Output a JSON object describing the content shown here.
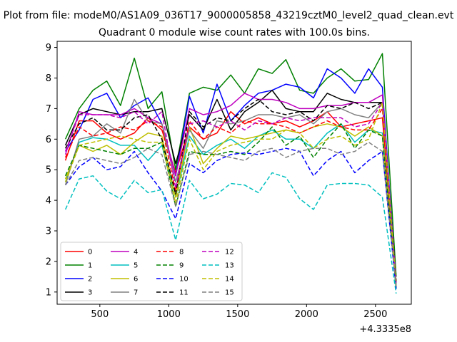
{
  "figure": {
    "suptitle": "Plot from file: modeM0/AS1A09_036T17_9000005858_43219cztM0_level2_quad_clean.evt"
  },
  "chart_data": {
    "type": "line",
    "title": "Quadrant 0 module wise count rates with 100.0s bins.",
    "xlabel": "",
    "ylabel": "",
    "x_offset_label": "+4.3335e8",
    "xlim": [
      190,
      2760
    ],
    "ylim": [
      0.6,
      9.2
    ],
    "xticks": [
      500,
      1000,
      1500,
      2000,
      2500
    ],
    "yticks": [
      1,
      2,
      3,
      4,
      5,
      6,
      7,
      8,
      9
    ],
    "grid": false,
    "legend_position": "lower-left",
    "x": [
      250,
      350,
      450,
      550,
      650,
      750,
      850,
      950,
      1050,
      1150,
      1250,
      1350,
      1450,
      1550,
      1650,
      1750,
      1850,
      1950,
      2050,
      2150,
      2250,
      2350,
      2450,
      2550,
      2650
    ],
    "series": [
      {
        "name": "0",
        "color": "#ff0000",
        "dash": "solid",
        "values": [
          5.3,
          6.6,
          6.6,
          6.2,
          6.0,
          6.2,
          6.7,
          6.3,
          4.9,
          6.4,
          6.0,
          6.2,
          6.9,
          6.5,
          6.7,
          6.5,
          6.6,
          6.4,
          6.6,
          6.9,
          6.4,
          6.5,
          6.6,
          6.7,
          1.3
        ]
      },
      {
        "name": "1",
        "color": "#008000",
        "dash": "solid",
        "values": [
          6.0,
          7.0,
          7.6,
          7.9,
          7.1,
          8.65,
          7.0,
          7.55,
          5.0,
          7.5,
          7.7,
          7.6,
          8.1,
          7.5,
          8.3,
          8.15,
          8.6,
          7.6,
          7.5,
          8.0,
          8.3,
          7.9,
          7.95,
          8.8,
          1.5
        ]
      },
      {
        "name": "2",
        "color": "#0000ff",
        "dash": "solid",
        "values": [
          5.6,
          6.3,
          7.3,
          7.5,
          6.7,
          7.1,
          7.35,
          6.5,
          4.8,
          7.4,
          6.2,
          7.8,
          6.6,
          7.1,
          7.5,
          7.6,
          7.8,
          7.7,
          7.35,
          8.3,
          8.0,
          7.5,
          8.3,
          7.7,
          1.2
        ]
      },
      {
        "name": "3",
        "color": "#000000",
        "dash": "solid",
        "values": [
          5.8,
          6.8,
          7.0,
          6.9,
          6.8,
          6.9,
          6.9,
          7.0,
          5.2,
          6.8,
          6.3,
          7.3,
          6.3,
          6.9,
          7.2,
          7.6,
          7.0,
          6.9,
          6.9,
          7.5,
          7.3,
          7.2,
          7.2,
          7.2,
          1.3
        ]
      },
      {
        "name": "4",
        "color": "#bf00bf",
        "dash": "solid",
        "values": [
          5.5,
          6.9,
          6.8,
          6.8,
          6.8,
          7.0,
          6.7,
          6.5,
          4.8,
          7.0,
          6.8,
          6.9,
          7.1,
          7.5,
          7.3,
          7.3,
          7.2,
          7.0,
          7.0,
          7.1,
          7.1,
          7.2,
          7.2,
          7.45,
          1.2
        ]
      },
      {
        "name": "5",
        "color": "#00bfbf",
        "dash": "solid",
        "values": [
          4.6,
          5.9,
          6.05,
          6.0,
          5.8,
          5.8,
          5.3,
          5.8,
          4.1,
          6.1,
          5.5,
          5.8,
          6.0,
          5.7,
          6.1,
          6.3,
          6.0,
          6.0,
          5.7,
          6.2,
          6.5,
          5.9,
          6.3,
          6.2,
          1.1
        ]
      },
      {
        "name": "6",
        "color": "#bfbf00",
        "dash": "solid",
        "values": [
          4.7,
          5.8,
          5.6,
          5.8,
          5.5,
          5.9,
          6.2,
          6.1,
          4.1,
          6.4,
          5.2,
          5.7,
          6.1,
          6.0,
          6.1,
          6.2,
          6.3,
          6.2,
          6.4,
          6.5,
          6.4,
          6.1,
          6.4,
          6.1,
          1.1
        ]
      },
      {
        "name": "7",
        "color": "#808080",
        "dash": "solid",
        "values": [
          4.5,
          6.0,
          6.1,
          6.5,
          6.2,
          7.3,
          6.6,
          6.5,
          4.6,
          6.3,
          5.7,
          6.6,
          6.5,
          6.6,
          6.8,
          6.8,
          6.7,
          6.8,
          6.5,
          6.9,
          7.0,
          6.8,
          6.7,
          7.2,
          1.2
        ]
      },
      {
        "name": "8",
        "color": "#ff0000",
        "dash": "dashed",
        "values": [
          5.4,
          6.4,
          6.1,
          6.2,
          6.4,
          6.3,
          6.6,
          6.4,
          4.3,
          6.6,
          6.0,
          6.4,
          6.2,
          6.6,
          6.5,
          6.5,
          6.4,
          6.2,
          6.4,
          6.6,
          6.4,
          6.3,
          6.3,
          7.0,
          1.3
        ]
      },
      {
        "name": "9",
        "color": "#008000",
        "dash": "dashed",
        "values": [
          4.8,
          5.8,
          5.7,
          5.6,
          5.5,
          5.7,
          5.7,
          5.9,
          3.8,
          5.6,
          5.5,
          5.5,
          5.6,
          5.5,
          5.9,
          6.4,
          5.8,
          6.1,
          5.4,
          6.0,
          6.5,
          5.7,
          6.3,
          6.1,
          1.1
        ]
      },
      {
        "name": "10",
        "color": "#0000ff",
        "dash": "dashed",
        "values": [
          4.5,
          5.1,
          5.4,
          5.0,
          5.1,
          5.6,
          4.9,
          4.3,
          3.4,
          5.2,
          4.9,
          5.3,
          5.5,
          5.55,
          5.5,
          5.6,
          5.7,
          5.6,
          4.8,
          5.3,
          5.6,
          4.9,
          5.3,
          5.6,
          1.1
        ]
      },
      {
        "name": "11",
        "color": "#000000",
        "dash": "dashed",
        "values": [
          5.7,
          6.5,
          6.7,
          6.3,
          6.3,
          6.7,
          6.8,
          6.0,
          4.2,
          6.9,
          6.4,
          6.7,
          6.6,
          7.0,
          7.3,
          6.9,
          6.8,
          6.9,
          6.6,
          7.1,
          7.0,
          7.2,
          7.0,
          7.2,
          1.3
        ]
      },
      {
        "name": "12",
        "color": "#bf00bf",
        "dash": "dashed",
        "values": [
          5.6,
          6.8,
          6.8,
          6.8,
          6.7,
          6.9,
          6.5,
          6.9,
          4.4,
          6.5,
          6.6,
          6.4,
          6.6,
          6.3,
          6.6,
          6.5,
          6.7,
          6.6,
          6.7,
          6.7,
          6.7,
          6.4,
          6.5,
          7.2,
          1.3
        ]
      },
      {
        "name": "13",
        "color": "#00bfbf",
        "dash": "dashed",
        "values": [
          3.7,
          4.7,
          4.8,
          4.3,
          4.05,
          4.65,
          4.25,
          4.35,
          2.7,
          4.65,
          4.05,
          4.2,
          4.55,
          4.5,
          4.25,
          4.9,
          4.75,
          4.05,
          3.7,
          4.5,
          4.55,
          4.55,
          4.5,
          4.1,
          0.95
        ]
      },
      {
        "name": "14",
        "color": "#bfbf00",
        "dash": "dashed",
        "values": [
          4.6,
          5.8,
          5.9,
          6.0,
          6.1,
          6.0,
          5.9,
          5.9,
          3.9,
          6.0,
          5.0,
          5.6,
          5.8,
          5.9,
          6.0,
          6.0,
          6.3,
          6.2,
          5.7,
          6.0,
          6.1,
          5.8,
          6.0,
          7.2,
          1.2
        ]
      },
      {
        "name": "15",
        "color": "#808080",
        "dash": "dashed",
        "values": [
          4.5,
          5.3,
          5.4,
          5.3,
          5.2,
          5.4,
          5.7,
          5.5,
          3.8,
          5.5,
          5.6,
          5.5,
          5.4,
          5.3,
          5.6,
          5.7,
          5.4,
          5.6,
          5.7,
          5.7,
          5.5,
          5.6,
          5.9,
          5.6,
          1.2
        ]
      }
    ]
  }
}
